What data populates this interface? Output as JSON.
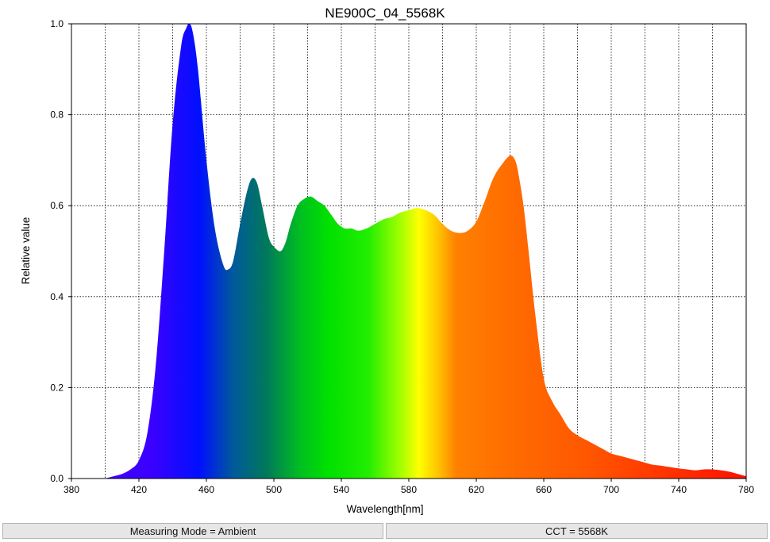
{
  "chart_data": {
    "type": "area",
    "title": "NE900C_04_5568K",
    "xlabel": "Wavelength[nm]",
    "ylabel": "Relative value",
    "xlim": [
      380,
      780
    ],
    "ylim": [
      0,
      1.0
    ],
    "grid": true,
    "x_ticks": [
      "380",
      "420",
      "460",
      "500",
      "540",
      "580",
      "620",
      "660",
      "700",
      "740",
      "780"
    ],
    "y_ticks": [
      "0.0",
      "0.2",
      "0.4",
      "0.6",
      "0.8",
      "1.0"
    ],
    "series": [
      {
        "x": [
          400,
          405,
          410,
          415,
          420,
          425,
          430,
          435,
          440,
          445,
          448,
          450,
          452,
          455,
          460,
          465,
          470,
          473,
          476,
          480,
          484,
          487,
          490,
          493,
          497,
          500,
          504,
          507,
          510,
          514,
          518,
          522,
          526,
          530,
          534,
          538,
          542,
          546,
          550,
          555,
          560,
          565,
          570,
          575,
          580,
          585,
          590,
          595,
          600,
          605,
          610,
          615,
          620,
          625,
          630,
          635,
          640,
          643,
          645,
          648,
          651,
          655,
          660,
          665,
          670,
          675,
          680,
          685,
          690,
          695,
          700,
          705,
          710,
          715,
          720,
          725,
          730,
          735,
          740,
          745,
          750,
          755,
          760,
          765,
          770,
          775,
          780
        ],
        "y": [
          0.0,
          0.005,
          0.01,
          0.02,
          0.04,
          0.1,
          0.25,
          0.5,
          0.78,
          0.95,
          0.99,
          1.0,
          0.98,
          0.9,
          0.7,
          0.55,
          0.47,
          0.46,
          0.48,
          0.56,
          0.63,
          0.66,
          0.65,
          0.6,
          0.53,
          0.51,
          0.5,
          0.52,
          0.56,
          0.6,
          0.615,
          0.62,
          0.61,
          0.6,
          0.58,
          0.56,
          0.55,
          0.55,
          0.545,
          0.55,
          0.56,
          0.57,
          0.575,
          0.585,
          0.59,
          0.595,
          0.59,
          0.58,
          0.56,
          0.545,
          0.54,
          0.545,
          0.565,
          0.61,
          0.66,
          0.69,
          0.71,
          0.7,
          0.67,
          0.6,
          0.5,
          0.36,
          0.22,
          0.17,
          0.14,
          0.11,
          0.095,
          0.085,
          0.075,
          0.065,
          0.055,
          0.05,
          0.045,
          0.04,
          0.035,
          0.03,
          0.028,
          0.025,
          0.022,
          0.02,
          0.018,
          0.02,
          0.02,
          0.018,
          0.015,
          0.01,
          0.005
        ]
      }
    ]
  },
  "status_bar": {
    "mode": "Measuring Mode = Ambient",
    "cct": "CCT = 5568K"
  }
}
